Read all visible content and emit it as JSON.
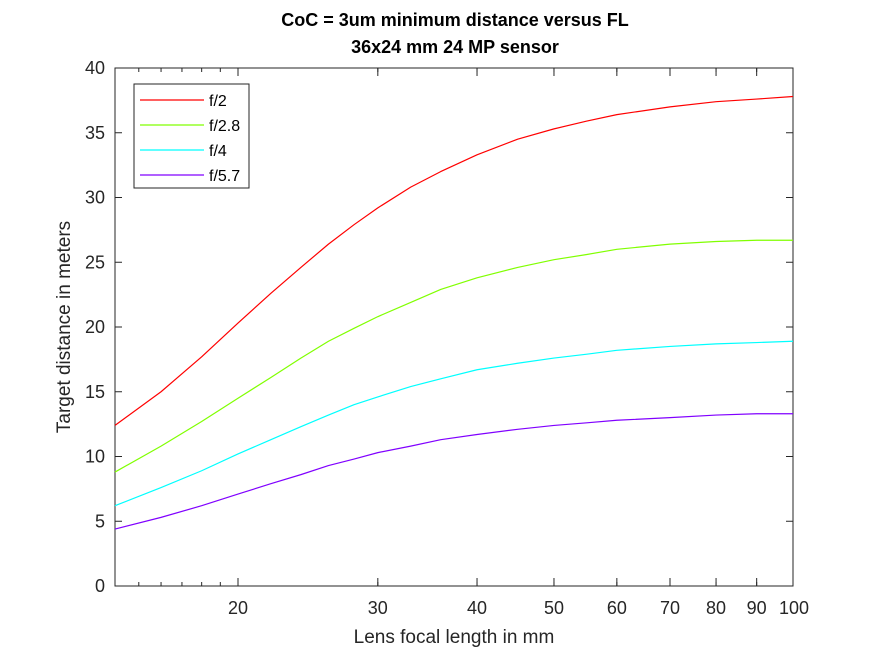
{
  "chart_data": {
    "type": "line",
    "title": [
      "CoC = 3um minimum distance versus FL",
      "36x24 mm 24 MP sensor"
    ],
    "xlabel": "Lens focal length in mm",
    "ylabel": "Target distance in meters",
    "xscale": "log",
    "xlim": [
      14,
      100
    ],
    "ylim": [
      0,
      40
    ],
    "xticks_labeled": [
      20,
      30,
      40,
      50,
      60,
      70,
      80,
      90,
      100
    ],
    "yticks": [
      0,
      5,
      10,
      15,
      20,
      25,
      30,
      35,
      40
    ],
    "grid": false,
    "legend_position": "top-left",
    "x": [
      14,
      16,
      18,
      20,
      22,
      24,
      26,
      28,
      30,
      33,
      36,
      40,
      45,
      50,
      55,
      60,
      70,
      80,
      90,
      100
    ],
    "series": [
      {
        "name": "f/2",
        "color": "#ff0000",
        "values": [
          12.4,
          15.0,
          17.7,
          20.3,
          22.6,
          24.6,
          26.4,
          27.9,
          29.2,
          30.8,
          32.0,
          33.3,
          34.5,
          35.3,
          35.9,
          36.4,
          37.0,
          37.4,
          37.6,
          37.8
        ]
      },
      {
        "name": "f/2.8",
        "color": "#80ff00",
        "values": [
          8.8,
          10.8,
          12.7,
          14.5,
          16.1,
          17.6,
          18.9,
          19.9,
          20.8,
          21.9,
          22.9,
          23.8,
          24.6,
          25.2,
          25.6,
          26.0,
          26.4,
          26.6,
          26.7,
          26.7
        ]
      },
      {
        "name": "f/4",
        "color": "#00ffff",
        "values": [
          6.2,
          7.6,
          8.9,
          10.2,
          11.3,
          12.3,
          13.2,
          14.0,
          14.6,
          15.4,
          16.0,
          16.7,
          17.2,
          17.6,
          17.9,
          18.2,
          18.5,
          18.7,
          18.8,
          18.9
        ]
      },
      {
        "name": "f/5.7",
        "color": "#8000ff",
        "values": [
          4.4,
          5.3,
          6.2,
          7.1,
          7.9,
          8.6,
          9.3,
          9.8,
          10.3,
          10.8,
          11.3,
          11.7,
          12.1,
          12.4,
          12.6,
          12.8,
          13.0,
          13.2,
          13.3,
          13.3
        ]
      }
    ]
  }
}
